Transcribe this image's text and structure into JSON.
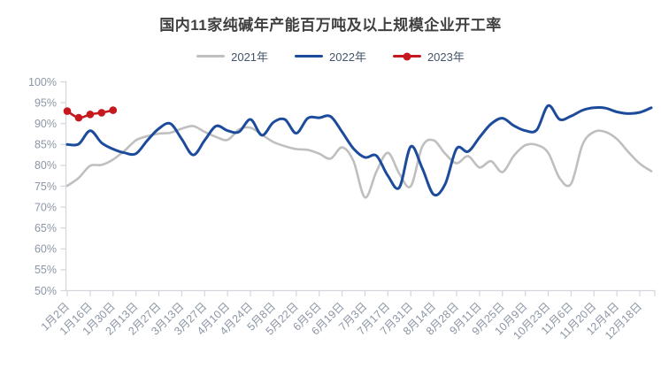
{
  "title": "国内11家纯碱年产能百万吨及以上规模企业开工率",
  "chart_data": {
    "type": "line",
    "title": "国内11家纯碱年产能百万吨及以上规模企业开工率",
    "xlabel": "",
    "ylabel": "",
    "ylim": [
      50,
      100
    ],
    "y_tick_labels": [
      "100%",
      "95%",
      "90%",
      "85%",
      "80%",
      "75%",
      "70%",
      "65%",
      "60%",
      "55%",
      "50%"
    ],
    "x_tick_labels": [
      "1月2日",
      "1月16日",
      "1月30日",
      "2月13日",
      "2月27日",
      "3月13日",
      "3月27日",
      "4月10日",
      "4月24日",
      "5月8日",
      "5月22日",
      "6月5日",
      "6月19日",
      "7月3日",
      "7月17日",
      "7月31日",
      "8月14日",
      "8月28日",
      "9月11日",
      "9月25日",
      "10月9日",
      "10月23日",
      "11月6日",
      "11月20日",
      "12月4日",
      "12月18日"
    ],
    "x": [
      "1月2日",
      "1月9日",
      "1月16日",
      "1月23日",
      "1月30日",
      "2月6日",
      "2月13日",
      "2月20日",
      "2月27日",
      "3月6日",
      "3月13日",
      "3月20日",
      "3月27日",
      "4月3日",
      "4月10日",
      "4月17日",
      "4月24日",
      "5月1日",
      "5月8日",
      "5月15日",
      "5月22日",
      "5月29日",
      "6月5日",
      "6月12日",
      "6月19日",
      "6月26日",
      "7月3日",
      "7月10日",
      "7月17日",
      "7月24日",
      "7月31日",
      "8月7日",
      "8月14日",
      "8月21日",
      "8月28日",
      "9月4日",
      "9月11日",
      "9月18日",
      "9月25日",
      "10月2日",
      "10月9日",
      "10月16日",
      "10月23日",
      "10月30日",
      "11月6日",
      "11月13日",
      "11月20日",
      "11月27日",
      "12月4日",
      "12月11日",
      "12月18日",
      "12月25日"
    ],
    "grid": false,
    "legend_position": "top",
    "series": [
      {
        "name": "2021年",
        "color": "#bfbfbf",
        "marker": "none",
        "values": [
          75.1,
          77.0,
          79.9,
          80.1,
          81.4,
          83.5,
          86.0,
          87.0,
          87.6,
          87.8,
          88.8,
          89.4,
          88.0,
          86.8,
          86.1,
          88.6,
          89.0,
          87.3,
          85.6,
          84.6,
          83.9,
          83.7,
          82.8,
          81.6,
          84.3,
          81.0,
          72.3,
          78.5,
          83.0,
          78.0,
          75.0,
          84.5,
          86.0,
          82.8,
          80.5,
          82.2,
          79.5,
          81.0,
          78.4,
          82.3,
          84.8,
          84.9,
          83.0,
          76.9,
          75.6,
          85.0,
          88.0,
          88.0,
          86.3,
          83.2,
          80.4,
          78.6
        ]
      },
      {
        "name": "2022年",
        "color": "#1c4b9c",
        "marker": "none",
        "values": [
          85.0,
          85.1,
          88.3,
          85.4,
          83.9,
          83.0,
          82.8,
          86.0,
          88.8,
          90.0,
          86.3,
          82.5,
          86.0,
          89.4,
          88.3,
          88.0,
          91.0,
          87.2,
          90.3,
          91.0,
          87.7,
          91.3,
          91.4,
          91.7,
          88.0,
          84.0,
          81.9,
          82.3,
          77.5,
          74.7,
          84.5,
          79.3,
          73.0,
          75.5,
          84.0,
          83.3,
          86.7,
          89.9,
          91.3,
          89.5,
          88.3,
          88.5,
          94.3,
          91.0,
          91.8,
          93.2,
          93.8,
          93.7,
          92.8,
          92.4,
          92.7,
          93.8
        ]
      },
      {
        "name": "2023年",
        "color": "#c5181f",
        "marker": "circle",
        "values": [
          93.0,
          91.4,
          92.2,
          92.6,
          93.2
        ]
      }
    ]
  },
  "colors": {
    "axis_line": "#d3d6dc",
    "tick_label": "#8c96a5",
    "title_text": "#404040",
    "legend_text": "#44546a"
  }
}
